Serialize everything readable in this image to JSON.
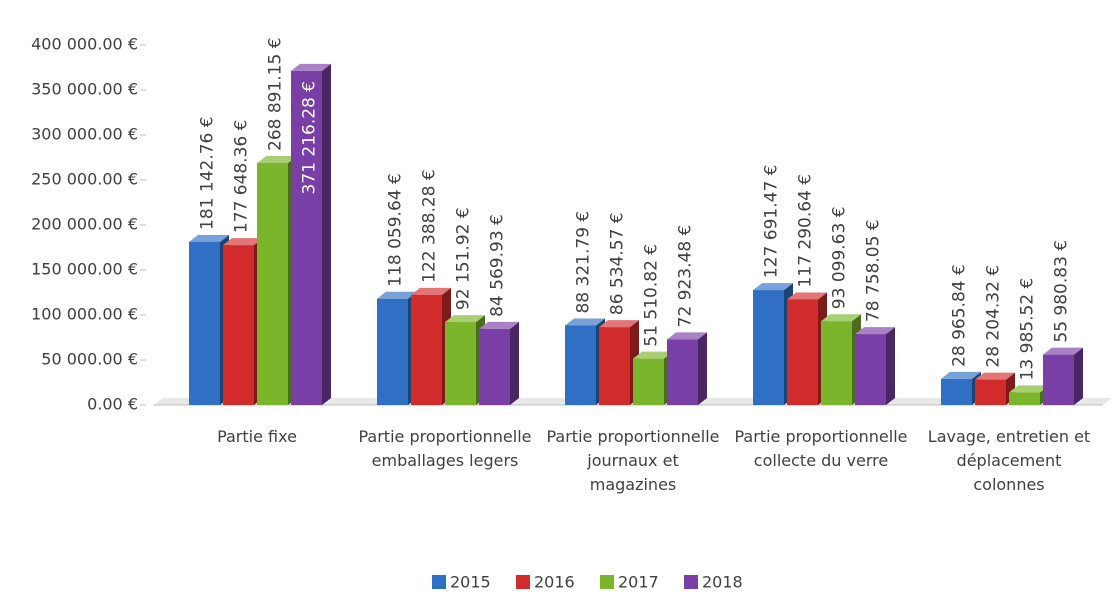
{
  "chart_data": {
    "type": "bar3d",
    "categories": [
      "Partie fixe",
      "Partie proportionnelle emballages legers",
      "Partie proportionnelle journaux et magazines",
      "Partie proportionnelle collecte du verre",
      "Lavage, entretien et déplacement colonnes"
    ],
    "series": [
      {
        "name": "2015",
        "color": "#2f6fc4",
        "values": [
          181142.76,
          118059.64,
          88321.79,
          127691.47,
          28965.84
        ],
        "value_labels": [
          "181 142.76 €",
          "118 059.64 €",
          "88 321.79 €",
          "127 691.47 €",
          "28 965.84 €"
        ]
      },
      {
        "name": "2016",
        "color": "#d22b2b",
        "values": [
          177648.36,
          122388.28,
          86534.57,
          117290.64,
          28204.32
        ],
        "value_labels": [
          "177 648.36 €",
          "122 388.28 €",
          "86 534.57 €",
          "117 290.64 €",
          "28 204.32 €"
        ]
      },
      {
        "name": "2017",
        "color": "#7ab52b",
        "values": [
          268891.15,
          92151.92,
          51510.82,
          93099.63,
          13985.52
        ],
        "value_labels": [
          "268 891.15 €",
          "92 151.92 €",
          "51 510.82 €",
          "93 099.63 €",
          "13 985.52 €"
        ]
      },
      {
        "name": "2018",
        "color": "#7a3fa6",
        "values": [
          371216.28,
          84569.93,
          72923.48,
          78758.05,
          55980.83
        ],
        "value_labels": [
          "371 216.28 €",
          "84 569.93 €",
          "72 923.48 €",
          "78 758.05 €",
          "55 980.83 €"
        ]
      }
    ],
    "ylim": [
      0,
      400000
    ],
    "yticks": [
      {
        "value": 0,
        "label": "0.00 €"
      },
      {
        "value": 50000,
        "label": "50 000.00 €"
      },
      {
        "value": 100000,
        "label": "100 000.00 €"
      },
      {
        "value": 150000,
        "label": "150 000.00 €"
      },
      {
        "value": 200000,
        "label": "200 000.00 €"
      },
      {
        "value": 250000,
        "label": "250 000.00 €"
      },
      {
        "value": 300000,
        "label": "300 000.00 €"
      },
      {
        "value": 350000,
        "label": "350 000.00 €"
      },
      {
        "value": 400000,
        "label": "400 000.00 €"
      }
    ],
    "legend": "bottom"
  }
}
